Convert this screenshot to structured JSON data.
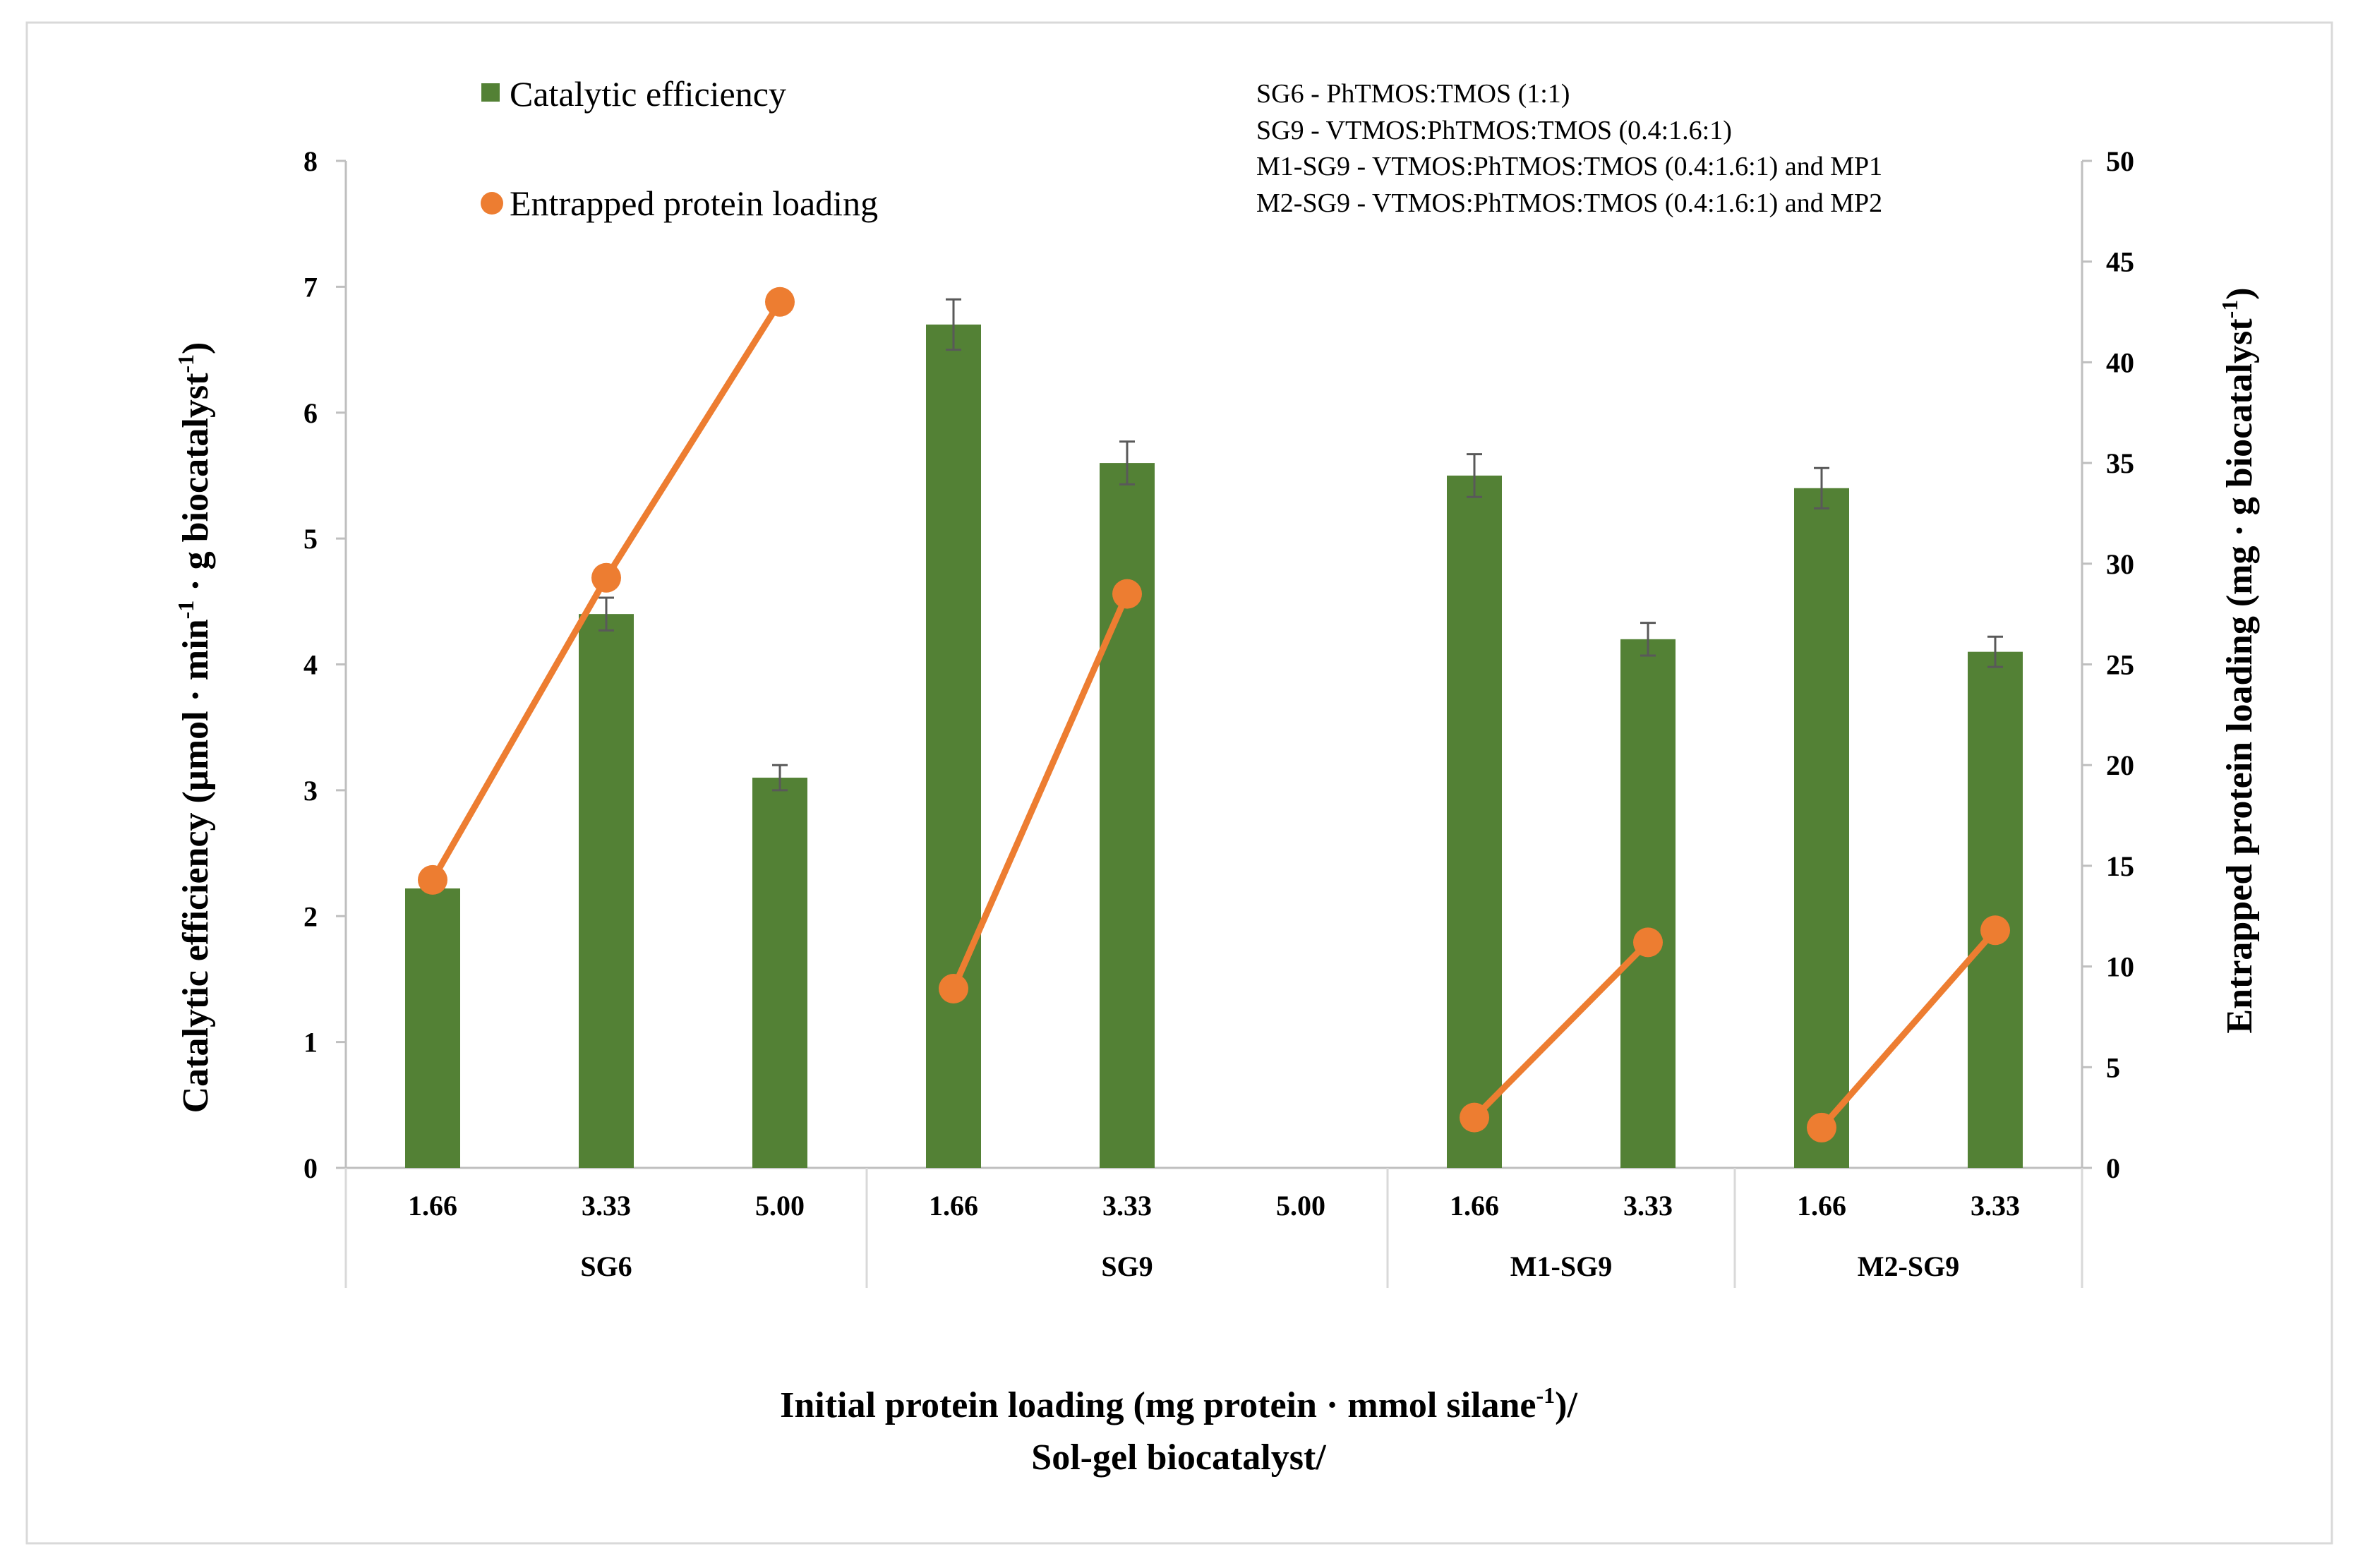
{
  "chart_data": {
    "type": "bar",
    "title": "",
    "categories": [
      "1.66",
      "3.33",
      "5.00",
      "1.66",
      "3.33",
      "5.00",
      "1.66",
      "3.33",
      "1.66",
      "3.33"
    ],
    "groups": [
      {
        "label": "SG6",
        "categories": [
          "1.66",
          "3.33",
          "5.00"
        ]
      },
      {
        "label": "SG9",
        "categories": [
          "1.66",
          "3.33",
          "5.00"
        ]
      },
      {
        "label": "M1-SG9",
        "categories": [
          "1.66",
          "3.33"
        ]
      },
      {
        "label": "M2-SG9",
        "categories": [
          "1.66",
          "3.33"
        ]
      }
    ],
    "series": [
      {
        "name": "Catalytic efficiency",
        "kind": "bar",
        "axis": "left",
        "color": "#538135",
        "values": [
          2.22,
          4.4,
          3.1,
          6.7,
          5.6,
          null,
          5.5,
          4.2,
          5.4,
          4.1
        ],
        "errors": [
          null,
          0.13,
          0.1,
          0.2,
          0.17,
          null,
          0.17,
          0.13,
          0.16,
          0.12
        ]
      },
      {
        "name": "Entrapped protein loading",
        "kind": "line",
        "axis": "right",
        "color": "#ED7D31",
        "values": [
          14.3,
          29.3,
          43.0,
          8.9,
          28.5,
          null,
          2.5,
          11.2,
          2.0,
          11.8
        ],
        "segments": [
          [
            0,
            1,
            2
          ],
          [
            3,
            4
          ],
          [
            6,
            7
          ],
          [
            8,
            9
          ]
        ]
      }
    ],
    "y_left": {
      "label": "Catalytic efficiency (µmol · min⁻¹ · g biocatalyst⁻¹)",
      "label_main": "Catalytic efficiency (µmol · min",
      "label_sup1": "-1",
      "label_mid": " · g biocatalyst",
      "label_sup2": "-1",
      "label_end": ")",
      "ylim": [
        0,
        8
      ],
      "ticks": [
        "0",
        "1",
        "2",
        "3",
        "4",
        "5",
        "6",
        "7",
        "8"
      ]
    },
    "y_right": {
      "label": "Entrapped protein loading (mg · g biocatalyst⁻¹)",
      "label_main": "Entrapped protein loading (mg · g biocatalyst",
      "label_sup": "-1",
      "label_end": ")",
      "ylim": [
        0,
        50
      ],
      "ticks": [
        "0",
        "5",
        "10",
        "15",
        "20",
        "25",
        "30",
        "35",
        "40",
        "45",
        "50"
      ]
    },
    "xlabel": {
      "line1_main": "Initial protein loading (mg protein · mmol silane",
      "line1_sup": "-1",
      "line1_end": ")/",
      "line2": "Sol-gel biocatalyst/"
    },
    "legend": {
      "position": "top-left",
      "items": [
        "Catalytic efficiency",
        "Entrapped protein loading"
      ]
    },
    "annotations": [
      "SG6 - PhTMOS:TMOS (1:1)",
      "SG9 - VTMOS:PhTMOS:TMOS (0.4:1.6:1)",
      "M1-SG9 - VTMOS:PhTMOS:TMOS (0.4:1.6:1) and MP1",
      "M2-SG9 - VTMOS:PhTMOS:TMOS (0.4:1.6:1) and MP2"
    ],
    "grid": false
  }
}
